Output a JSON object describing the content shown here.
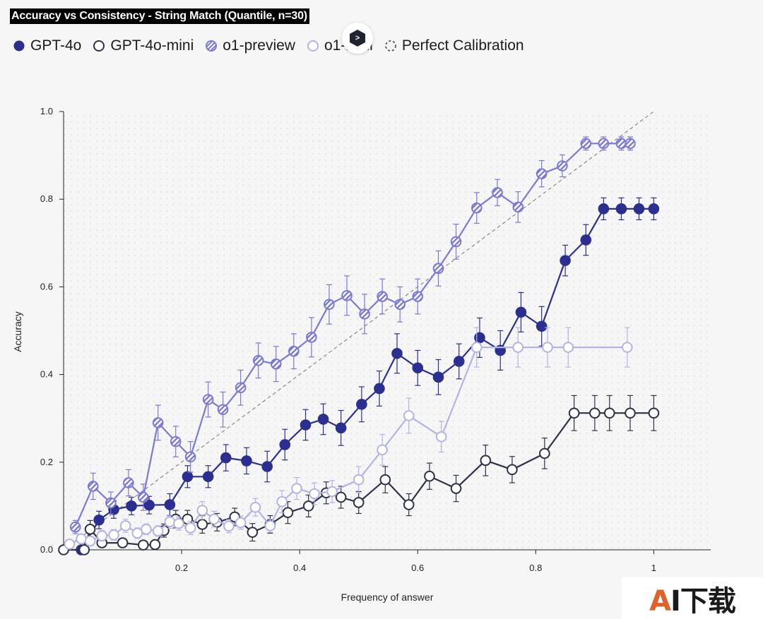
{
  "chart_data": {
    "type": "line",
    "title": "Accuracy vs Consistency - String Match (Quantile, n=30)",
    "xlabel": "Frequency of answer",
    "ylabel": "Accuracy",
    "xlim": [
      0,
      1.1
    ],
    "ylim": [
      0,
      1.0
    ],
    "x_ticks": [
      0.2,
      0.4,
      0.6,
      0.8,
      1
    ],
    "x_tick_labels": [
      "0.2",
      "0.4",
      "0.6",
      "0.8",
      "1"
    ],
    "y_ticks": [
      0.0,
      0.2,
      0.4,
      0.6,
      0.8,
      1.0
    ],
    "y_tick_labels": [
      "0.0",
      "0.2",
      "0.4",
      "0.6",
      "0.8",
      "1.0"
    ],
    "grid": false,
    "legend_position": "top-left",
    "calibration_line": {
      "name": "Perfect Calibration",
      "from": [
        0,
        0
      ],
      "to": [
        1,
        1
      ]
    },
    "series": [
      {
        "name": "GPT-4o",
        "style": "solid",
        "color": "#2b2f8f",
        "x": [
          0.03,
          0.06,
          0.085,
          0.115,
          0.145,
          0.18,
          0.21,
          0.245,
          0.275,
          0.31,
          0.345,
          0.375,
          0.41,
          0.44,
          0.47,
          0.505,
          0.535,
          0.565,
          0.6,
          0.635,
          0.67,
          0.705,
          0.74,
          0.775,
          0.81,
          0.85,
          0.885,
          0.915,
          0.945,
          0.975,
          1.0
        ],
        "y": [
          0.0,
          0.068,
          0.092,
          0.1,
          0.102,
          0.103,
          0.167,
          0.167,
          0.21,
          0.203,
          0.19,
          0.24,
          0.285,
          0.298,
          0.278,
          0.332,
          0.368,
          0.448,
          0.415,
          0.394,
          0.43,
          0.484,
          0.455,
          0.542,
          0.51,
          0.66,
          0.707,
          0.778,
          0.778,
          0.778,
          0.778
        ],
        "err": [
          0.015,
          0.02,
          0.02,
          0.02,
          0.02,
          0.025,
          0.025,
          0.025,
          0.03,
          0.03,
          0.035,
          0.035,
          0.035,
          0.035,
          0.04,
          0.04,
          0.04,
          0.045,
          0.04,
          0.04,
          0.04,
          0.045,
          0.045,
          0.045,
          0.045,
          0.035,
          0.035,
          0.025,
          0.025,
          0.025,
          0.025
        ]
      },
      {
        "name": "GPT-4o-mini",
        "style": "hollow",
        "color": "#2e3247",
        "x": [
          0.0,
          0.035,
          0.045,
          0.065,
          0.1,
          0.135,
          0.155,
          0.17,
          0.19,
          0.21,
          0.235,
          0.26,
          0.29,
          0.32,
          0.35,
          0.38,
          0.415,
          0.445,
          0.47,
          0.5,
          0.545,
          0.585,
          0.62,
          0.665,
          0.715,
          0.76,
          0.815,
          0.865,
          0.9,
          0.925,
          0.96,
          1.0
        ],
        "y": [
          0.0,
          0.0,
          0.047,
          0.016,
          0.016,
          0.011,
          0.012,
          0.044,
          0.07,
          0.07,
          0.058,
          0.063,
          0.075,
          0.04,
          0.058,
          0.085,
          0.1,
          0.13,
          0.12,
          0.108,
          0.16,
          0.103,
          0.168,
          0.14,
          0.204,
          0.183,
          0.22,
          0.312,
          0.312,
          0.312,
          0.312,
          0.312
        ],
        "err": [
          0.008,
          0.008,
          0.02,
          0.01,
          0.01,
          0.01,
          0.01,
          0.015,
          0.02,
          0.02,
          0.02,
          0.02,
          0.02,
          0.02,
          0.02,
          0.025,
          0.025,
          0.025,
          0.025,
          0.025,
          0.03,
          0.025,
          0.03,
          0.03,
          0.035,
          0.03,
          0.035,
          0.04,
          0.04,
          0.04,
          0.04,
          0.04
        ]
      },
      {
        "name": "o1-preview",
        "style": "hatched",
        "color": "#7b78d6",
        "x": [
          0.02,
          0.05,
          0.08,
          0.11,
          0.135,
          0.16,
          0.19,
          0.215,
          0.245,
          0.27,
          0.3,
          0.33,
          0.36,
          0.39,
          0.42,
          0.45,
          0.48,
          0.51,
          0.54,
          0.57,
          0.6,
          0.635,
          0.665,
          0.7,
          0.735,
          0.77,
          0.81,
          0.845,
          0.885,
          0.915,
          0.945,
          0.96
        ],
        "y": [
          0.052,
          0.145,
          0.107,
          0.153,
          0.12,
          0.29,
          0.247,
          0.212,
          0.343,
          0.32,
          0.37,
          0.432,
          0.424,
          0.453,
          0.485,
          0.56,
          0.58,
          0.538,
          0.578,
          0.56,
          0.578,
          0.642,
          0.703,
          0.78,
          0.815,
          0.782,
          0.858,
          0.876,
          0.927,
          0.927,
          0.927,
          0.927
        ],
        "err": [
          0.015,
          0.03,
          0.025,
          0.03,
          0.03,
          0.04,
          0.035,
          0.035,
          0.04,
          0.04,
          0.04,
          0.04,
          0.04,
          0.04,
          0.045,
          0.045,
          0.045,
          0.045,
          0.04,
          0.04,
          0.04,
          0.04,
          0.04,
          0.035,
          0.03,
          0.035,
          0.03,
          0.025,
          0.015,
          0.015,
          0.015,
          0.015
        ]
      },
      {
        "name": "o1-mini",
        "style": "light",
        "color": "#b3b3e6",
        "x": [
          0.01,
          0.03,
          0.045,
          0.065,
          0.085,
          0.105,
          0.125,
          0.14,
          0.16,
          0.18,
          0.195,
          0.215,
          0.235,
          0.255,
          0.28,
          0.3,
          0.325,
          0.35,
          0.37,
          0.395,
          0.425,
          0.455,
          0.5,
          0.54,
          0.585,
          0.64,
          0.7,
          0.77,
          0.82,
          0.855,
          0.955
        ],
        "y": [
          0.013,
          0.025,
          0.02,
          0.032,
          0.034,
          0.055,
          0.038,
          0.047,
          0.043,
          0.064,
          0.06,
          0.05,
          0.09,
          0.07,
          0.054,
          0.062,
          0.097,
          0.055,
          0.11,
          0.14,
          0.128,
          0.133,
          0.16,
          0.228,
          0.306,
          0.258,
          0.462,
          0.462,
          0.462,
          0.462,
          0.462
        ],
        "err": [
          0.008,
          0.01,
          0.01,
          0.012,
          0.012,
          0.015,
          0.012,
          0.012,
          0.012,
          0.015,
          0.015,
          0.015,
          0.02,
          0.018,
          0.015,
          0.015,
          0.02,
          0.015,
          0.025,
          0.025,
          0.025,
          0.025,
          0.03,
          0.035,
          0.04,
          0.035,
          0.045,
          0.045,
          0.045,
          0.045,
          0.045
        ]
      }
    ]
  },
  "legend": [
    {
      "label": "GPT-4o",
      "style": "solid",
      "color": "#2b2f8f"
    },
    {
      "label": "GPT-4o-mini",
      "style": "hollow",
      "color": "#2e3247"
    },
    {
      "label": "o1-preview",
      "style": "hatched",
      "color": "#7b78d6"
    },
    {
      "label": "o1-mini",
      "style": "light",
      "color": "#b3b3e6"
    },
    {
      "label": "Perfect Calibration",
      "style": "dashed",
      "color": "#555555"
    }
  ],
  "overlay_badge": {
    "icon": "chevron-right-hexagon-icon",
    "glyph": ">"
  },
  "watermark": {
    "part1": "A",
    "part2": "I下载"
  }
}
